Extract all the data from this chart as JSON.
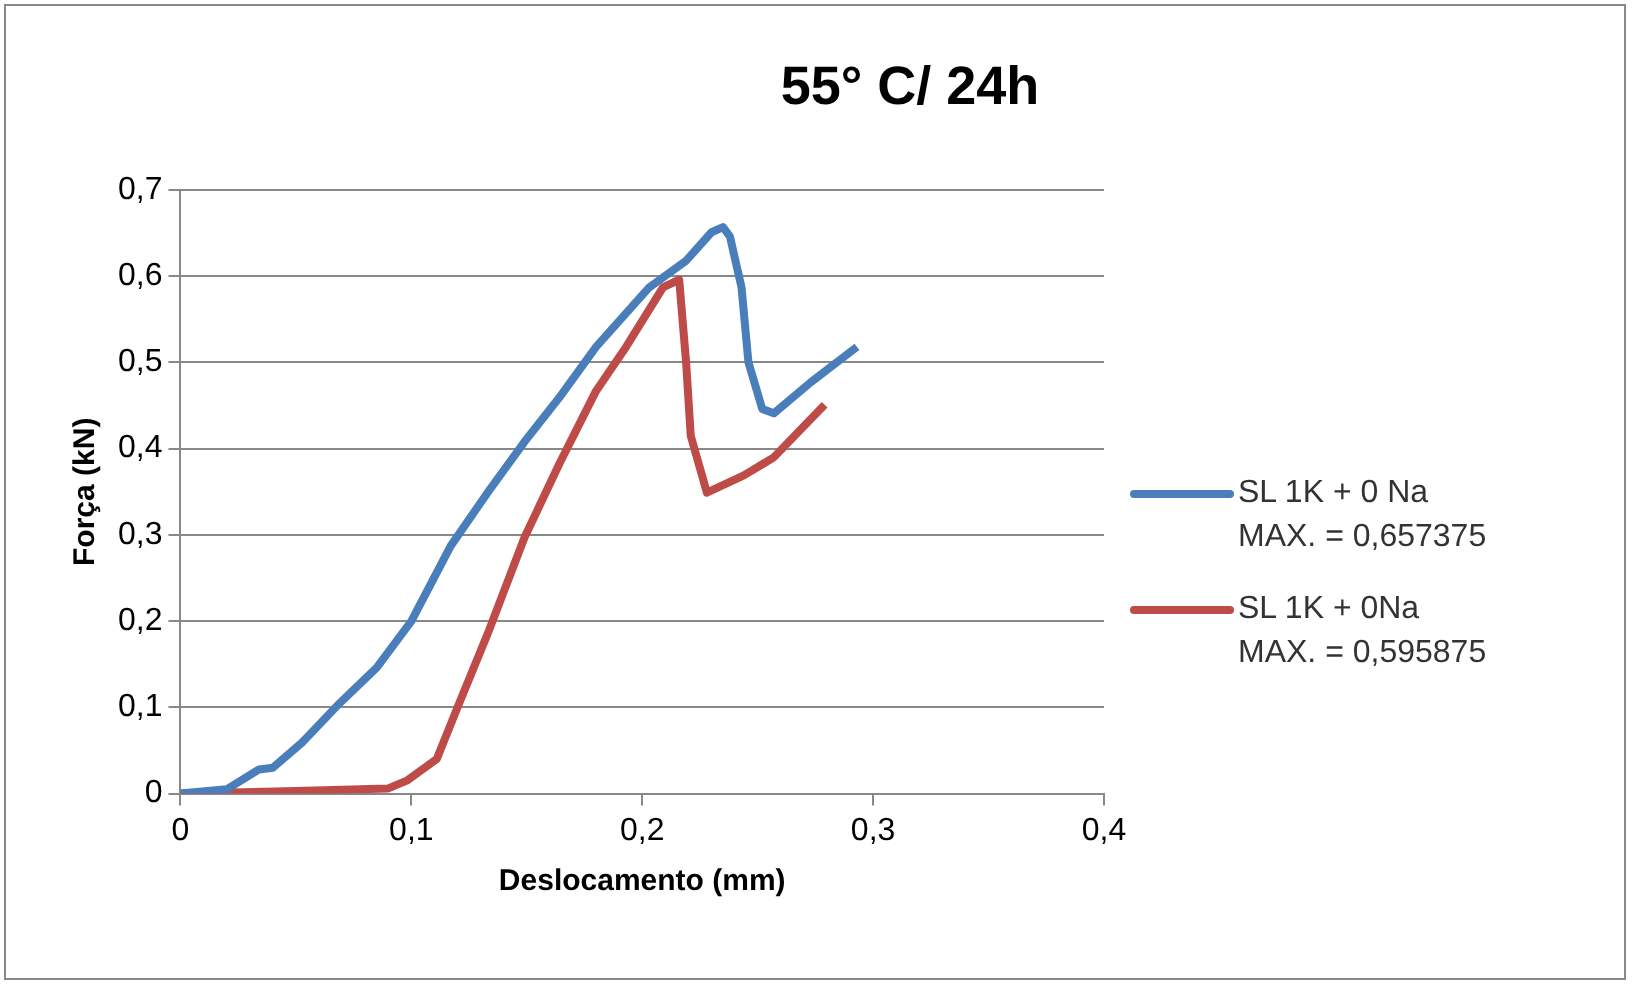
{
  "chart_data": {
    "type": "line",
    "title": "55° C/ 24h",
    "xlabel": "Deslocamento (mm)",
    "ylabel": "Força (kN)",
    "xlim": [
      0,
      0.4
    ],
    "xticks": [
      0,
      {
        "value": 0.1,
        "label": "0,1"
      },
      {
        "value": 0.2,
        "label": "0,2"
      },
      {
        "value": 0.3,
        "label": "0,3"
      },
      {
        "value": 0.4,
        "label": "0,4"
      }
    ],
    "ylim": [
      0,
      0.7
    ],
    "yticks": [
      0,
      {
        "value": 0.1,
        "label": "0,1"
      },
      {
        "value": 0.2,
        "label": "0,2"
      },
      {
        "value": 0.3,
        "label": "0,3"
      },
      {
        "value": 0.4,
        "label": "0,4"
      },
      {
        "value": 0.5,
        "label": "0,5"
      },
      {
        "value": 0.6,
        "label": "0,6"
      },
      {
        "value": 0.7,
        "label": "0,7"
      }
    ],
    "grid": "y",
    "legend": "right",
    "marker": "none",
    "line_style": "solid",
    "series": [
      {
        "name": "SL 1K + 0 Na\nMAX. = 0,657375",
        "color": "#4a7ebb",
        "x": [
          0,
          0.02,
          0.034,
          0.04,
          0.053,
          0.069,
          0.085,
          0.1,
          0.117,
          0.133,
          0.149,
          0.164,
          0.18,
          0.203,
          0.219,
          0.23,
          0.235,
          0.238,
          0.243,
          0.246,
          0.252,
          0.257,
          0.273,
          0.293
        ],
        "values": [
          0,
          0.005,
          0.028,
          0.03,
          0.06,
          0.105,
          0.146,
          0.2,
          0.287,
          0.349,
          0.408,
          0.459,
          0.518,
          0.587,
          0.618,
          0.651,
          0.657,
          0.646,
          0.587,
          0.5,
          0.446,
          0.441,
          0.477,
          0.518
        ]
      },
      {
        "name": "SL 1K + 0Na\nMAX. = 0,595875",
        "color": "#be4b48",
        "x": [
          0,
          0.05,
          0.09,
          0.098,
          0.111,
          0.12,
          0.133,
          0.149,
          0.164,
          0.18,
          0.193,
          0.209,
          0.216,
          0.219,
          0.221,
          0.228,
          0.244,
          0.257,
          0.279
        ],
        "values": [
          0,
          0.003,
          0.006,
          0.015,
          0.04,
          0.1,
          0.185,
          0.297,
          0.382,
          0.467,
          0.518,
          0.587,
          0.596,
          0.5,
          0.415,
          0.349,
          0.369,
          0.39,
          0.451
        ]
      }
    ]
  }
}
